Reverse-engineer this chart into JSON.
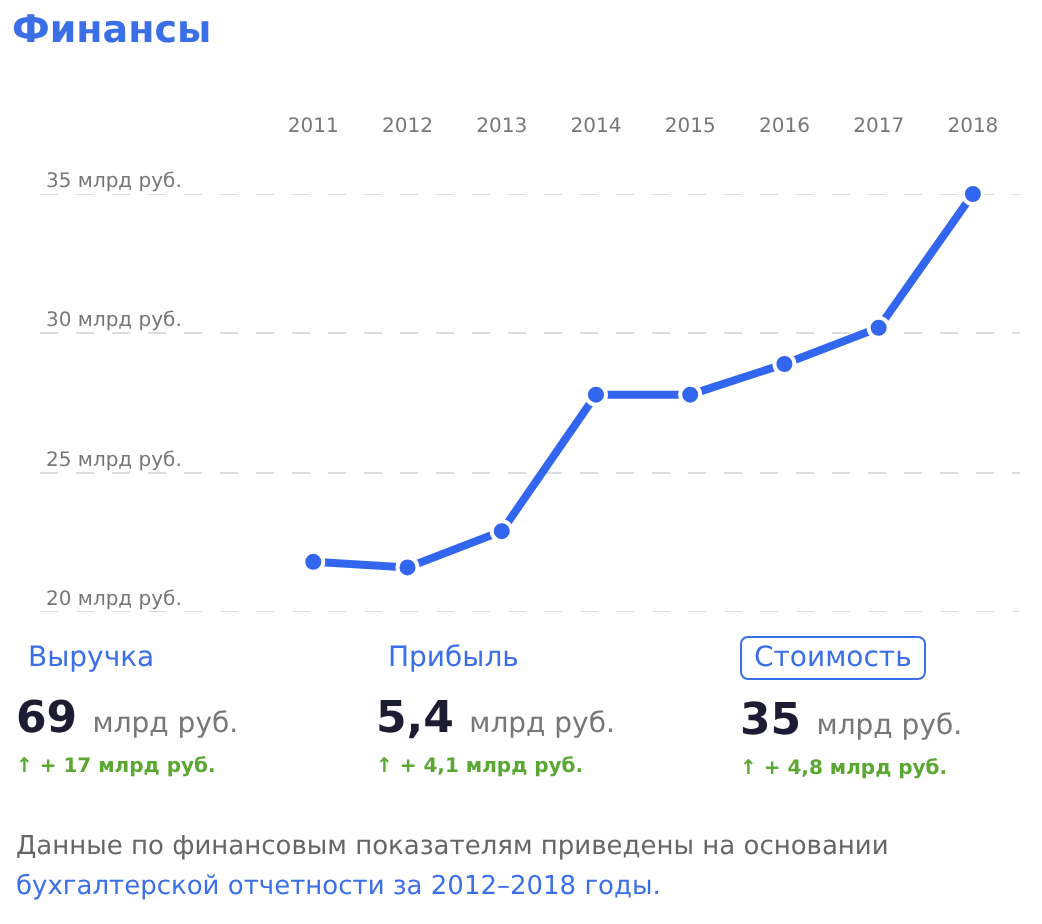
{
  "chart_data": {
    "type": "line",
    "title": "Финансы",
    "categories": [
      "2011",
      "2012",
      "2013",
      "2014",
      "2015",
      "2016",
      "2017",
      "2018"
    ],
    "series": [
      {
        "color": "#3366ee",
        "values": [
          21.8,
          21.6,
          22.9,
          27.8,
          27.8,
          28.9,
          30.2,
          35
        ]
      }
    ],
    "ylim": [
      20,
      35
    ],
    "yticks": [
      {
        "value": 20,
        "label": "20 млрд руб."
      },
      {
        "value": 25,
        "label": "25 млрд руб."
      },
      {
        "value": 30,
        "label": "30 млрд руб."
      },
      {
        "value": 35,
        "label": "35 млрд руб."
      }
    ],
    "grid": "y",
    "marker": "circle",
    "line_style": "solid",
    "annotations": [
      "Выручка",
      "69",
      "млрд руб.",
      "↑ + 17 млрд руб.",
      "Прибыль",
      "5,4",
      "млрд руб.",
      "↑ + 4,1 млрд руб.",
      "Стоимость",
      "35",
      "млрд руб.",
      "↑ + 4,8 млрд руб.",
      "Данные по финансовым показателям приведены на",
      "основании",
      "бухгалтерской отчетности за 2012–2018 годы."
    ]
  }
}
